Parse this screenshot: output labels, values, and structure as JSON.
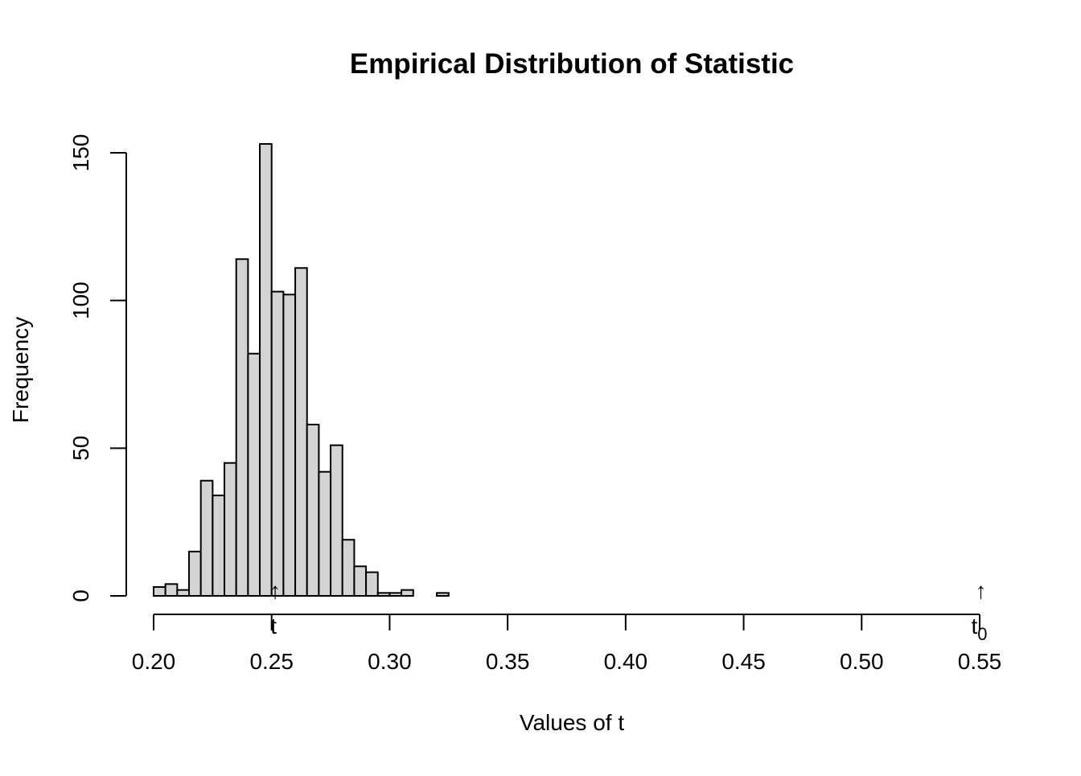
{
  "chart_data": {
    "type": "bar",
    "title": "Empirical Distribution of Statistic",
    "xlabel": "Values of t",
    "ylabel": "Frequency",
    "xlim": [
      0.2,
      0.55
    ],
    "ylim": [
      0,
      150
    ],
    "x_ticks": [
      {
        "value": 0.2,
        "label": "0.20"
      },
      {
        "value": 0.25,
        "label": "0.25"
      },
      {
        "value": 0.3,
        "label": "0.30"
      },
      {
        "value": 0.35,
        "label": "0.35"
      },
      {
        "value": 0.4,
        "label": "0.40"
      },
      {
        "value": 0.45,
        "label": "0.45"
      },
      {
        "value": 0.5,
        "label": "0.50"
      },
      {
        "value": 0.55,
        "label": "0.55"
      }
    ],
    "y_ticks": [
      {
        "value": 0,
        "label": "0"
      },
      {
        "value": 50,
        "label": "50"
      },
      {
        "value": 100,
        "label": "100"
      },
      {
        "value": 150,
        "label": "150"
      }
    ],
    "bin_width": 0.005,
    "bin_starts": [
      0.2,
      0.205,
      0.21,
      0.215,
      0.22,
      0.225,
      0.23,
      0.235,
      0.24,
      0.245,
      0.25,
      0.255,
      0.26,
      0.265,
      0.27,
      0.275,
      0.28,
      0.285,
      0.29,
      0.295,
      0.3,
      0.305,
      0.31,
      0.315,
      0.32
    ],
    "values": [
      3,
      4,
      2,
      15,
      39,
      34,
      45,
      114,
      82,
      153,
      103,
      102,
      111,
      58,
      42,
      51,
      19,
      10,
      8,
      1,
      1,
      2,
      0,
      0,
      1
    ],
    "bar_fill": "#d3d3d3",
    "bar_stroke": "#000000",
    "grid": false,
    "markers": [
      {
        "name": "t",
        "x": 0.2515,
        "label": "t",
        "subscript": ""
      },
      {
        "name": "t0",
        "x": 0.5505,
        "label": "t",
        "subscript": "0"
      }
    ],
    "arrow_glyph": "↑"
  }
}
